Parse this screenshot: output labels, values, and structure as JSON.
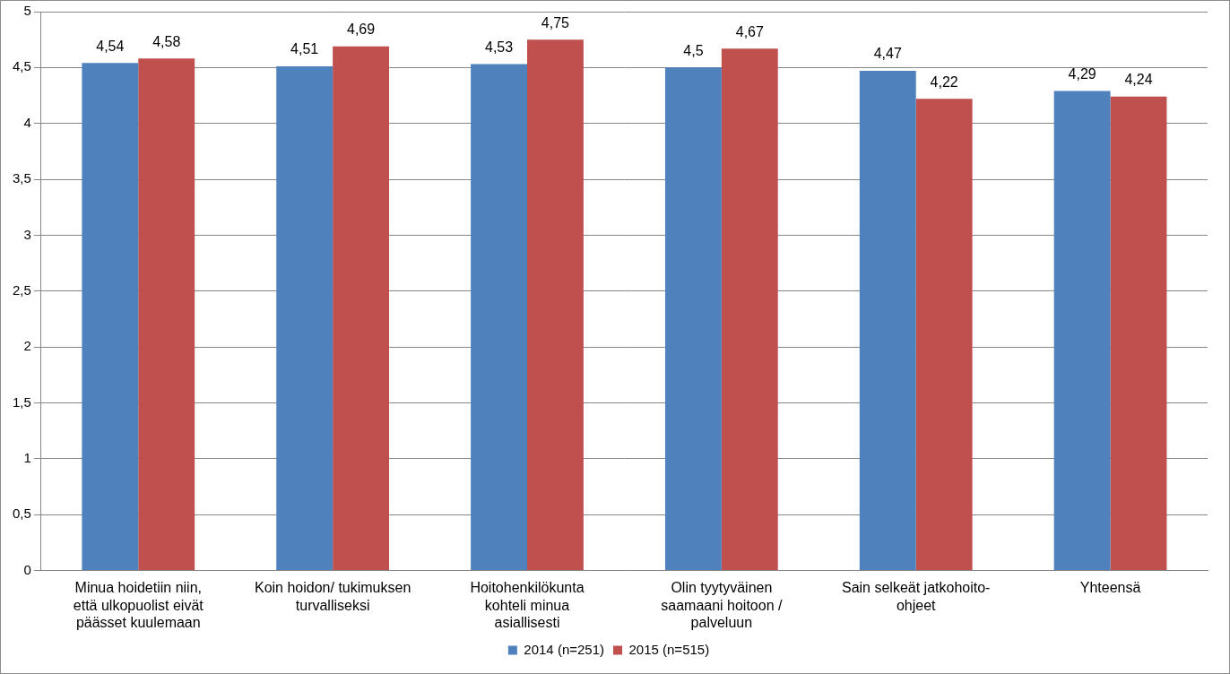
{
  "chart_data": {
    "type": "bar",
    "categories": [
      "Minua hoidetiin niin, että ulkopuolist eivät päässet kuulemaan",
      "Koin hoidon/ tukimuksen turvalliseksi",
      "Hoitohenkilökunta kohteli minua asiallisesti",
      "Olin tyytyväinen saamaani hoitoon / palveluun",
      "Sain selkeät jatkohoito-ohjeet",
      "Yhteensä"
    ],
    "series": [
      {
        "name": "2014 (n=251)",
        "color": "#4f81bd",
        "values": [
          4.54,
          4.51,
          4.53,
          4.5,
          4.47,
          4.29
        ],
        "value_labels": [
          "4,54",
          "4,51",
          "4,53",
          "4,5",
          "4,47",
          "4,29"
        ]
      },
      {
        "name": "2015 (n=515)",
        "color": "#c0504d",
        "values": [
          4.58,
          4.69,
          4.75,
          4.67,
          4.22,
          4.24
        ],
        "value_labels": [
          "4,58",
          "4,69",
          "4,75",
          "4,67",
          "4,22",
          "4,24"
        ]
      }
    ],
    "ylim": [
      0,
      5
    ],
    "yticks": [
      0,
      {
        "value": 0.5,
        "label": "0,5"
      },
      1,
      {
        "value": 1.5,
        "label": "1,5"
      },
      2,
      {
        "value": 2.5,
        "label": "2,5"
      },
      3,
      {
        "value": 3.5,
        "label": "3,5"
      },
      4,
      {
        "value": 4.5,
        "label": "4,5"
      },
      5
    ],
    "grid": true,
    "legend": "bottom",
    "data_labels": true
  }
}
